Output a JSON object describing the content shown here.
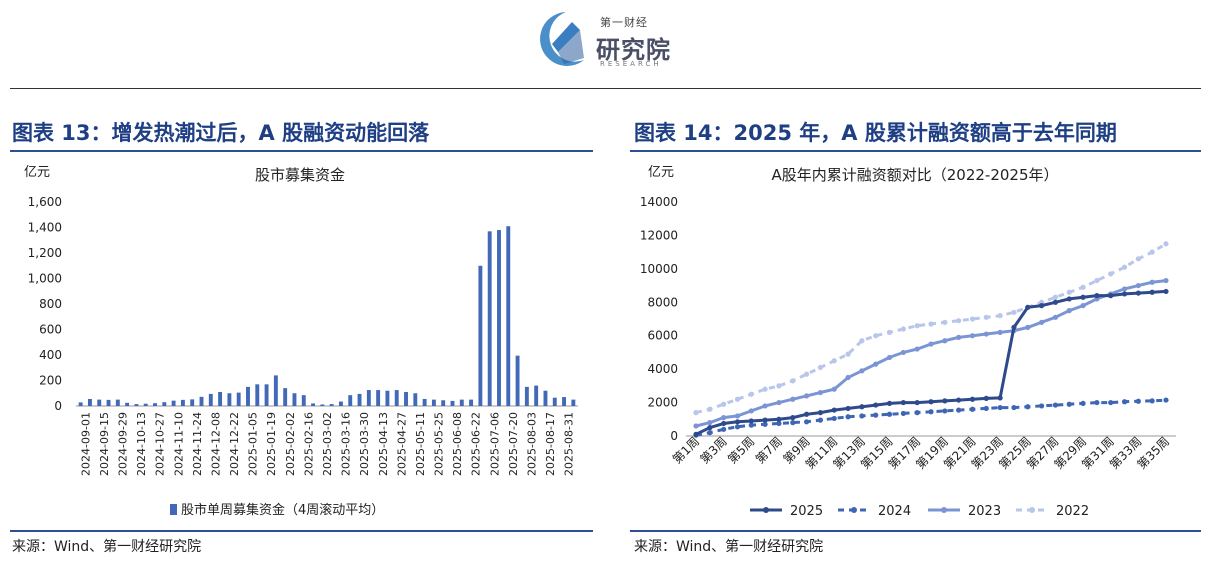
{
  "header": {
    "logo_small": "第一财经",
    "logo_big": "研究院",
    "logo_en": "RESEARCH"
  },
  "left": {
    "figure_title": "图表 13：增发热潮过后，A 股融资动能回落",
    "source": "来源：Wind、第一财经研究院"
  },
  "right": {
    "figure_title": "图表 14：2025 年，A 股累计融资额高于去年同期",
    "source": "来源：Wind、第一财经研究院"
  },
  "colors": {
    "title_blue": "#1f3f84",
    "bar": "#4169b8",
    "s2025": "#2e4a8c",
    "s2024": "#3f66b5",
    "s2023": "#7b95d4",
    "s2022": "#b8c6ea"
  },
  "chart_data": [
    {
      "type": "bar",
      "title": "股市募集资金",
      "ylabel": "亿元",
      "ylim": [
        0,
        1600
      ],
      "yticks": [
        "0",
        "200",
        "400",
        "600",
        "800",
        "1,000",
        "1,200",
        "1,400",
        "1,600"
      ],
      "ytick_values": [
        0,
        200,
        400,
        600,
        800,
        1000,
        1200,
        1400,
        1600
      ],
      "legend": "股市单周募集资金（4周滚动平均）",
      "x_tick_labels": [
        "2024-09-01",
        "2024-09-15",
        "2024-09-29",
        "2024-10-13",
        "2024-10-27",
        "2024-11-10",
        "2024-11-24",
        "2024-12-08",
        "2024-12-22",
        "2025-01-05",
        "2025-01-19",
        "2025-02-02",
        "2025-02-16",
        "2025-03-02",
        "2025-03-16",
        "2025-03-30",
        "2025-04-13",
        "2025-04-27",
        "2025-05-11",
        "2025-05-25",
        "2025-06-08",
        "2025-06-22",
        "2025-07-06",
        "2025-07-20",
        "2025-08-03",
        "2025-08-17",
        "2025-08-31"
      ],
      "values": [
        28,
        55,
        50,
        48,
        50,
        25,
        15,
        18,
        22,
        30,
        42,
        48,
        52,
        72,
        95,
        110,
        100,
        105,
        150,
        170,
        170,
        240,
        140,
        100,
        85,
        20,
        12,
        15,
        35,
        85,
        95,
        125,
        125,
        120,
        125,
        110,
        100,
        55,
        50,
        45,
        40,
        50,
        50,
        1100,
        1370,
        1380,
        1410,
        395,
        150,
        160,
        120,
        65,
        70,
        50
      ]
    },
    {
      "type": "line",
      "title": "A股年内累计融资额对比（2022-2025年）",
      "ylabel": "亿元",
      "ylim": [
        0,
        14000
      ],
      "yticks": [
        "0",
        "2000",
        "4000",
        "6000",
        "8000",
        "10000",
        "12000",
        "14000"
      ],
      "ytick_values": [
        0,
        2000,
        4000,
        6000,
        8000,
        10000,
        12000,
        14000
      ],
      "x_tick_labels": [
        "第1周",
        "第3周",
        "第5周",
        "第7周",
        "第9周",
        "第11周",
        "第13周",
        "第15周",
        "第17周",
        "第19周",
        "第21周",
        "第23周",
        "第25周",
        "第27周",
        "第29周",
        "第31周",
        "第33周",
        "第35周"
      ],
      "series": [
        {
          "name": "2025",
          "style": "solid",
          "values": [
            100,
            500,
            750,
            850,
            900,
            950,
            1000,
            1100,
            1300,
            1400,
            1550,
            1650,
            1750,
            1850,
            1950,
            2000,
            2000,
            2050,
            2100,
            2150,
            2200,
            2250,
            2280,
            6500,
            7700,
            7800,
            8000,
            8200,
            8300,
            8400,
            8400,
            8500,
            8550,
            8600,
            8650
          ]
        },
        {
          "name": "2024",
          "style": "dashed",
          "values": [
            50,
            200,
            400,
            550,
            650,
            700,
            750,
            800,
            850,
            950,
            1050,
            1150,
            1200,
            1250,
            1300,
            1350,
            1400,
            1450,
            1500,
            1550,
            1600,
            1650,
            1700,
            1700,
            1750,
            1800,
            1850,
            1900,
            1950,
            2000,
            2000,
            2050,
            2080,
            2100,
            2150
          ]
        },
        {
          "name": "2023",
          "style": "solid",
          "values": [
            600,
            800,
            1100,
            1200,
            1500,
            1800,
            2000,
            2200,
            2400,
            2600,
            2800,
            3500,
            3900,
            4300,
            4700,
            5000,
            5200,
            5500,
            5700,
            5900,
            6000,
            6100,
            6200,
            6300,
            6500,
            6800,
            7100,
            7500,
            7800,
            8200,
            8500,
            8800,
            9000,
            9200,
            9300
          ]
        },
        {
          "name": "2022",
          "style": "dashed",
          "values": [
            1400,
            1600,
            1900,
            2200,
            2500,
            2800,
            3000,
            3300,
            3700,
            4100,
            4500,
            4900,
            5700,
            6000,
            6200,
            6400,
            6600,
            6700,
            6800,
            6900,
            7000,
            7100,
            7200,
            7400,
            7700,
            8000,
            8300,
            8600,
            8900,
            9300,
            9700,
            10100,
            10600,
            11000,
            11500
          ]
        }
      ]
    }
  ]
}
